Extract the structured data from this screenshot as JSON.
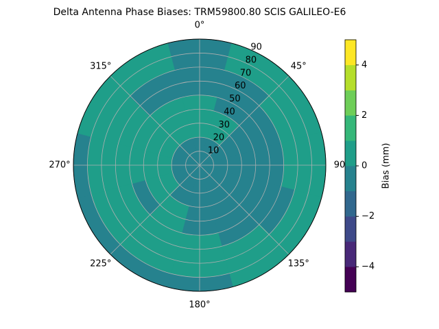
{
  "chart_data": {
    "type": "polar-contour",
    "title": "Delta Antenna Phase Biases: TRM59800.80     SCIS GALILEO-E6",
    "colorbar_label": "Bias (mm)",
    "azimuth": [
      0,
      30,
      60,
      90,
      120,
      150,
      180,
      210,
      240,
      270,
      300,
      330
    ],
    "zenith": [
      5,
      15,
      25,
      35,
      45,
      55,
      65,
      75,
      85
    ],
    "z": [
      [
        -0.5,
        -0.5,
        0.5,
        0.5,
        0.5,
        -0.5,
        -0.5,
        -0.5,
        -0.5
      ],
      [
        -0.5,
        -0.5,
        0.5,
        0.5,
        -0.5,
        -0.5,
        -0.5,
        0.5,
        0.5
      ],
      [
        -0.5,
        -0.5,
        -0.5,
        -0.5,
        -0.5,
        -0.5,
        0.5,
        0.5,
        0.5
      ],
      [
        -0.5,
        -0.5,
        -0.5,
        -0.5,
        -0.5,
        -0.5,
        0.5,
        0.5,
        0.5
      ],
      [
        -0.5,
        -0.5,
        -0.5,
        -0.5,
        -0.5,
        -0.5,
        -0.5,
        0.5,
        0.5
      ],
      [
        -0.5,
        -0.5,
        -0.5,
        -0.5,
        -0.5,
        -0.5,
        0.5,
        0.5,
        0.5
      ],
      [
        -0.5,
        -0.5,
        -0.5,
        -0.5,
        -0.5,
        0.5,
        0.5,
        0.5,
        -0.5
      ],
      [
        -0.5,
        -0.5,
        -0.5,
        0.5,
        0.5,
        0.5,
        0.5,
        0.5,
        -0.5
      ],
      [
        -0.5,
        -0.5,
        0.5,
        0.5,
        -0.5,
        0.5,
        0.5,
        0.5,
        -0.5
      ],
      [
        -0.5,
        -0.5,
        0.5,
        0.5,
        0.5,
        0.5,
        0.5,
        0.5,
        -0.5
      ],
      [
        -0.5,
        -0.5,
        0.5,
        0.5,
        0.5,
        0.5,
        0.5,
        0.5,
        0.5
      ],
      [
        -0.5,
        -0.5,
        0.5,
        0.5,
        0.5,
        -0.5,
        -0.5,
        0.5,
        0.5
      ]
    ],
    "levels": [
      -5,
      -4,
      -3,
      -2,
      -1,
      0,
      1,
      2,
      3,
      4,
      5
    ],
    "colors": [
      "#440154",
      "#482878",
      "#3e4989",
      "#31688e",
      "#26828e",
      "#1f9e89",
      "#35b779",
      "#6ece58",
      "#b5de2b",
      "#fde725"
    ],
    "rlim": [
      0,
      90
    ],
    "rticks": [
      10,
      20,
      30,
      40,
      50,
      60,
      70,
      80,
      90
    ],
    "thetaticks": [
      {
        "value": 0,
        "label": "0°"
      },
      {
        "value": 45,
        "label": "45°"
      },
      90,
      {
        "value": 135,
        "label": "135°"
      },
      {
        "value": 180,
        "label": "180°"
      },
      {
        "value": 225,
        "label": "225°"
      },
      {
        "value": 270,
        "label": "270°"
      },
      {
        "value": 315,
        "label": "315°"
      }
    ],
    "colorbar_ticks": [
      {
        "value": -4,
        "label": "−4"
      },
      {
        "value": -2,
        "label": "−2"
      },
      0,
      2,
      4
    ],
    "grid": true
  }
}
